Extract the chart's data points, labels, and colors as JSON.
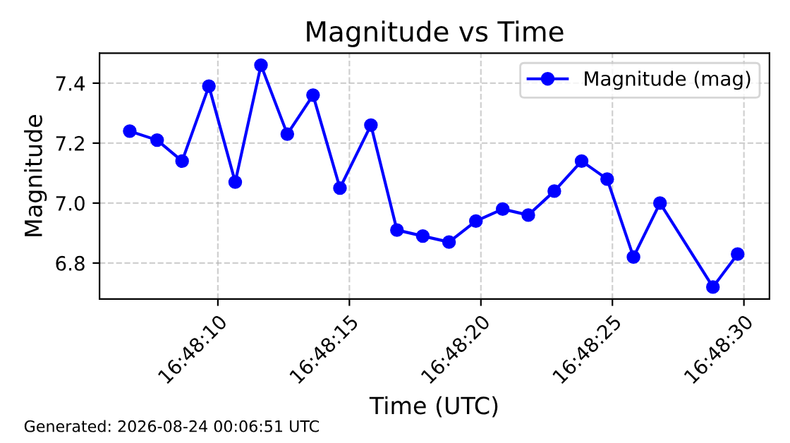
{
  "chart_data": {
    "type": "line",
    "title": "Magnitude vs Time",
    "xlabel": "Time (UTC)",
    "ylabel": "Magnitude",
    "x": [
      16.801847,
      16.802136,
      16.8024,
      16.802683,
      16.802961,
      16.803233,
      16.803511,
      16.803783,
      16.804067,
      16.804394,
      16.804669,
      16.804942,
      16.805219,
      16.805503,
      16.805786,
      16.806056,
      16.806331,
      16.806619,
      16.806889,
      16.807167,
      16.807447,
      16.808006,
      16.808267
    ],
    "series": [
      {
        "name": "Magnitude (mag)",
        "color": "#0000ff",
        "values": [
          7.24,
          7.21,
          7.14,
          7.39,
          7.07,
          7.46,
          7.23,
          7.36,
          7.05,
          7.26,
          6.91,
          6.89,
          6.87,
          6.94,
          6.98,
          6.96,
          7.04,
          7.14,
          7.08,
          6.82,
          7.0,
          6.72,
          6.83
        ]
      }
    ],
    "xlim": [
      16.801528,
      16.808603
    ],
    "xticks": [
      {
        "value": 16.8027778,
        "label": "16:48:10"
      },
      {
        "value": 16.8041667,
        "label": "16:48:15"
      },
      {
        "value": 16.8055556,
        "label": "16:48:20"
      },
      {
        "value": 16.8069444,
        "label": "16:48:25"
      },
      {
        "value": 16.8083333,
        "label": "16:48:30"
      }
    ],
    "ylim": [
      6.68,
      7.5
    ],
    "yticks": [
      6.8,
      {
        "value": 7.0,
        "label": "7.0"
      },
      7.2,
      7.4
    ],
    "grid": true,
    "legend": "top right",
    "marker": "circle",
    "line_style": "solid",
    "annotations": [
      "Generated: 2026-08-24 00:06:51 UTC"
    ]
  }
}
